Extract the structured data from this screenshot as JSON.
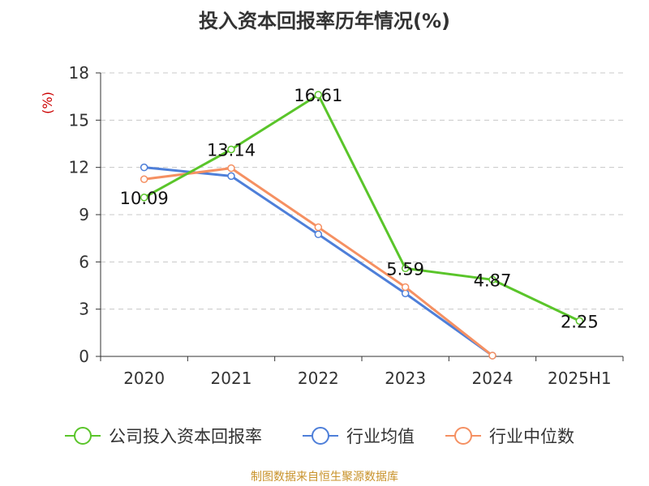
{
  "chart_data": {
    "type": "line",
    "title": "投入资本回报率历年情况(%)",
    "ylabel": "(%)",
    "categories": [
      "2020",
      "2021",
      "2022",
      "2023",
      "2024",
      "2025H1"
    ],
    "ylim": [
      0,
      18
    ],
    "yticks": [
      0,
      3,
      6,
      9,
      12,
      15,
      18
    ],
    "grid": true,
    "legend_position": "bottom",
    "series": [
      {
        "name": "公司投入资本回报率",
        "color": "#5ac52a",
        "values": [
          10.09,
          13.14,
          16.61,
          5.59,
          4.87,
          2.25
        ],
        "labels": [
          "10.09",
          "13.14",
          "16.61",
          "5.59",
          "4.87",
          "2.25"
        ]
      },
      {
        "name": "行业均值",
        "color": "#4e7fd9",
        "values": [
          12.0,
          11.45,
          7.75,
          4.0,
          0.05,
          null
        ]
      },
      {
        "name": "行业中位数",
        "color": "#f59062",
        "values": [
          11.25,
          11.95,
          8.2,
          4.4,
          0.05,
          null
        ]
      }
    ]
  },
  "source_text": "制图数据来自恒生聚源数据库"
}
